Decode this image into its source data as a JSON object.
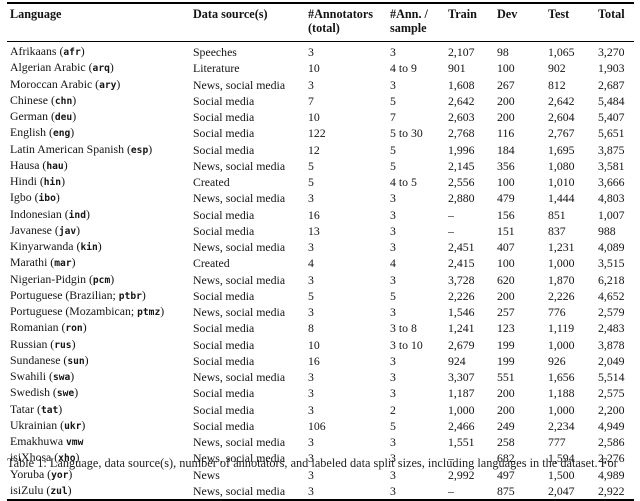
{
  "page": {
    "background": "#ffffff",
    "text_color": "#141414",
    "rule_color": "#000000"
  },
  "table": {
    "columns": [
      {
        "id": "language",
        "lines": [
          "Language"
        ]
      },
      {
        "id": "source",
        "lines": [
          "Data source(s)"
        ]
      },
      {
        "id": "annotators",
        "lines": [
          "#Annotators",
          "(total)"
        ]
      },
      {
        "id": "annsample",
        "lines": [
          "#Ann. /",
          "sample"
        ]
      },
      {
        "id": "train",
        "lines": [
          "Train"
        ]
      },
      {
        "id": "dev",
        "lines": [
          "Dev"
        ]
      },
      {
        "id": "test",
        "lines": [
          "Test"
        ]
      },
      {
        "id": "total",
        "lines": [
          "Total"
        ]
      }
    ],
    "rows": [
      {
        "language_prefix": "Afrikaans (",
        "language_code": "afr",
        "language_suffix": ")",
        "data_sources": "Speeches",
        "annotators_total": "3",
        "ann_per_sample": "3",
        "train": "2,107",
        "dev": "98",
        "test": "1,065",
        "total": "3,270"
      },
      {
        "language_prefix": "Algerian Arabic (",
        "language_code": "arq",
        "language_suffix": ")",
        "data_sources": "Literature",
        "annotators_total": "10",
        "ann_per_sample": "4 to 9",
        "train": "901",
        "dev": "100",
        "test": "902",
        "total": "1,903"
      },
      {
        "language_prefix": "Moroccan Arabic (",
        "language_code": "ary",
        "language_suffix": ")",
        "data_sources": "News, social media",
        "annotators_total": "3",
        "ann_per_sample": "3",
        "train": "1,608",
        "dev": "267",
        "test": "812",
        "total": "2,687"
      },
      {
        "language_prefix": "Chinese (",
        "language_code": "chn",
        "language_suffix": ")",
        "data_sources": "Social media",
        "annotators_total": "7",
        "ann_per_sample": "5",
        "train": "2,642",
        "dev": "200",
        "test": "2,642",
        "total": "5,484"
      },
      {
        "language_prefix": "German (",
        "language_code": "deu",
        "language_suffix": ")",
        "data_sources": "Social media",
        "annotators_total": "10",
        "ann_per_sample": "7",
        "train": "2,603",
        "dev": "200",
        "test": "2,604",
        "total": "5,407"
      },
      {
        "language_prefix": "English (",
        "language_code": "eng",
        "language_suffix": ")",
        "data_sources": "Social media",
        "annotators_total": "122",
        "ann_per_sample": "5 to 30",
        "train": "2,768",
        "dev": "116",
        "test": "2,767",
        "total": "5,651"
      },
      {
        "language_prefix": "Latin American Spanish (",
        "language_code": "esp",
        "language_suffix": ")",
        "data_sources": "Social media",
        "annotators_total": "12",
        "ann_per_sample": "5",
        "train": "1,996",
        "dev": "184",
        "test": "1,695",
        "total": "3,875"
      },
      {
        "language_prefix": "Hausa (",
        "language_code": "hau",
        "language_suffix": ")",
        "data_sources": "News, social media",
        "annotators_total": "5",
        "ann_per_sample": "5",
        "train": "2,145",
        "dev": "356",
        "test": "1,080",
        "total": "3,581"
      },
      {
        "language_prefix": "Hindi (",
        "language_code": "hin",
        "language_suffix": ")",
        "data_sources": "Created",
        "annotators_total": "5",
        "ann_per_sample": "4 to 5",
        "train": "2,556",
        "dev": "100",
        "test": "1,010",
        "total": "3,666"
      },
      {
        "language_prefix": "Igbo (",
        "language_code": "ibo",
        "language_suffix": ")",
        "data_sources": "News, social media",
        "annotators_total": "3",
        "ann_per_sample": "3",
        "train": "2,880",
        "dev": "479",
        "test": "1,444",
        "total": "4,803"
      },
      {
        "language_prefix": "Indonesian (",
        "language_code": "ind",
        "language_suffix": ")",
        "data_sources": "Social media",
        "annotators_total": "16",
        "ann_per_sample": "3",
        "train": "–",
        "dev": "156",
        "test": "851",
        "total": "1,007"
      },
      {
        "language_prefix": "Javanese (",
        "language_code": "jav",
        "language_suffix": ")",
        "data_sources": "Social media",
        "annotators_total": "13",
        "ann_per_sample": "3",
        "train": "–",
        "dev": "151",
        "test": "837",
        "total": "988"
      },
      {
        "language_prefix": "Kinyarwanda (",
        "language_code": "kin",
        "language_suffix": ")",
        "data_sources": "News, social media",
        "annotators_total": "3",
        "ann_per_sample": "3",
        "train": "2,451",
        "dev": "407",
        "test": "1,231",
        "total": "4,089"
      },
      {
        "language_prefix": "Marathi (",
        "language_code": "mar",
        "language_suffix": ")",
        "data_sources": "Created",
        "annotators_total": "4",
        "ann_per_sample": "4",
        "train": "2,415",
        "dev": "100",
        "test": "1,000",
        "total": "3,515"
      },
      {
        "language_prefix": "Nigerian-Pidgin (",
        "language_code": "pcm",
        "language_suffix": ")",
        "data_sources": "News, social media",
        "annotators_total": "3",
        "ann_per_sample": "3",
        "train": "3,728",
        "dev": "620",
        "test": "1,870",
        "total": "6,218"
      },
      {
        "language_prefix": "Portuguese (Brazilian; ",
        "language_code": "ptbr",
        "language_suffix": ")",
        "data_sources": "Social media",
        "annotators_total": "5",
        "ann_per_sample": "5",
        "train": "2,226",
        "dev": "200",
        "test": "2,226",
        "total": "4,652"
      },
      {
        "language_prefix": "Portuguese (Mozambican; ",
        "language_code": "ptmz",
        "language_suffix": ")",
        "data_sources": "News, social media",
        "annotators_total": "3",
        "ann_per_sample": "3",
        "train": "1,546",
        "dev": "257",
        "test": "776",
        "total": "2,579"
      },
      {
        "language_prefix": "Romanian (",
        "language_code": "ron",
        "language_suffix": ")",
        "data_sources": "Social media",
        "annotators_total": "8",
        "ann_per_sample": "3 to 8",
        "train": "1,241",
        "dev": "123",
        "test": "1,119",
        "total": "2,483"
      },
      {
        "language_prefix": "Russian (",
        "language_code": "rus",
        "language_suffix": ")",
        "data_sources": "Social media",
        "annotators_total": "10",
        "ann_per_sample": "3 to 10",
        "train": "2,679",
        "dev": "199",
        "test": "1,000",
        "total": "3,878"
      },
      {
        "language_prefix": "Sundanese (",
        "language_code": "sun",
        "language_suffix": ")",
        "data_sources": "Social media",
        "annotators_total": "16",
        "ann_per_sample": "3",
        "train": "924",
        "dev": "199",
        "test": "926",
        "total": "2,049"
      },
      {
        "language_prefix": "Swahili (",
        "language_code": "swa",
        "language_suffix": ")",
        "data_sources": "News, social media",
        "annotators_total": "3",
        "ann_per_sample": "3",
        "train": "3,307",
        "dev": "551",
        "test": "1,656",
        "total": "5,514"
      },
      {
        "language_prefix": "Swedish (",
        "language_code": "swe",
        "language_suffix": ")",
        "data_sources": "Social media",
        "annotators_total": "3",
        "ann_per_sample": "3",
        "train": "1,187",
        "dev": "200",
        "test": "1,188",
        "total": "2,575"
      },
      {
        "language_prefix": "Tatar (",
        "language_code": "tat",
        "language_suffix": ")",
        "data_sources": "Social media",
        "annotators_total": "3",
        "ann_per_sample": "2",
        "train": "1,000",
        "dev": "200",
        "test": "1,000",
        "total": "2,200"
      },
      {
        "language_prefix": "Ukrainian (",
        "language_code": "ukr",
        "language_suffix": ")",
        "data_sources": "Social media",
        "annotators_total": "106",
        "ann_per_sample": "5",
        "train": "2,466",
        "dev": "249",
        "test": "2,234",
        "total": "4,949"
      },
      {
        "language_prefix": "Emakhuwa ",
        "language_code": "vmw",
        "language_suffix": "",
        "data_sources": "News, social media",
        "annotators_total": "3",
        "ann_per_sample": "3",
        "train": "1,551",
        "dev": "258",
        "test": "777",
        "total": "2,586"
      },
      {
        "language_prefix": "isiXhosa (",
        "language_code": "xho",
        "language_suffix": ")",
        "data_sources": "News, social media",
        "annotators_total": "3",
        "ann_per_sample": "3",
        "train": "–",
        "dev": "682",
        "test": "1,594",
        "total": "2,276"
      },
      {
        "language_prefix": "Yoruba (",
        "language_code": "yor",
        "language_suffix": ")",
        "data_sources": "News",
        "annotators_total": "3",
        "ann_per_sample": "3",
        "train": "2,992",
        "dev": "497",
        "test": "1,500",
        "total": "4,989"
      },
      {
        "language_prefix": "isiZulu (",
        "language_code": "zul",
        "language_suffix": ")",
        "data_sources": "News, social media",
        "annotators_total": "3",
        "ann_per_sample": "3",
        "train": "–",
        "dev": "875",
        "test": "2,047",
        "total": "2,922"
      }
    ]
  },
  "caption": {
    "partial_text": "Table 1: Language, data source(s), number of annotators, and labeled data split sizes, including languages in the dataset. For"
  }
}
